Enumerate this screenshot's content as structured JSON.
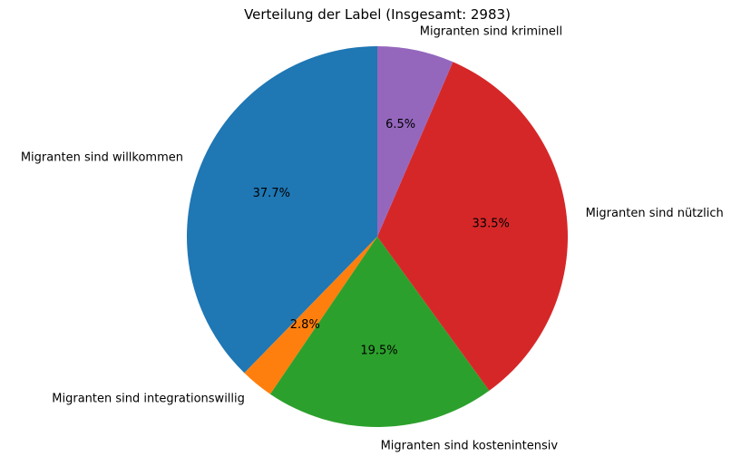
{
  "chart_data": {
    "type": "pie",
    "title": "Verteilung der Label (Insgesamt: 2983)",
    "total": 2983,
    "start_angle_deg": 90,
    "direction": "counterclockwise",
    "slices": [
      {
        "label": "Migranten sind willkommen",
        "percent": 37.7,
        "pct_label": "37.7%",
        "color": "#1f77b4"
      },
      {
        "label": "Migranten sind integrationswillig",
        "percent": 2.8,
        "pct_label": "2.8%",
        "color": "#ff7f0e"
      },
      {
        "label": "Migranten sind kostenintensiv",
        "percent": 19.5,
        "pct_label": "19.5%",
        "color": "#2ca02c"
      },
      {
        "label": "Migranten sind nützlich",
        "percent": 33.5,
        "pct_label": "33.5%",
        "color": "#d62728"
      },
      {
        "label": "Migranten sind kriminell",
        "percent": 6.5,
        "pct_label": "6.5%",
        "color": "#9467bd"
      }
    ]
  }
}
